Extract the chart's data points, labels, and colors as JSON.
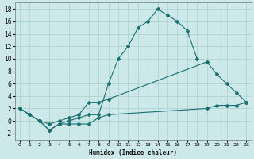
{
  "xlabel": "Humidex (Indice chaleur)",
  "background_color": "#cce8e8",
  "grid_color": "#afd4d4",
  "line_color": "#1a7070",
  "xlim": [
    -0.5,
    23.5
  ],
  "ylim": [
    -3,
    19
  ],
  "x_ticks": [
    0,
    1,
    2,
    3,
    4,
    5,
    6,
    7,
    8,
    9,
    10,
    11,
    12,
    13,
    14,
    15,
    16,
    17,
    18,
    19,
    20,
    21,
    22,
    23
  ],
  "y_ticks": [
    -2,
    0,
    2,
    4,
    6,
    8,
    10,
    12,
    14,
    16,
    18
  ],
  "series": [
    {
      "x": [
        0,
        1,
        2,
        3,
        4,
        5,
        6,
        7,
        8,
        9,
        10,
        11,
        12,
        13,
        14,
        15,
        16,
        17,
        18
      ],
      "y": [
        2.0,
        1.0,
        0.0,
        -1.5,
        -0.5,
        0.0,
        0.5,
        1.0,
        1.0,
        6.0,
        10.0,
        12.0,
        15.0,
        16.0,
        18.0,
        17.0,
        16.0,
        14.5,
        10.0
      ]
    },
    {
      "x": [
        0,
        1,
        2,
        3,
        4,
        5,
        6,
        7,
        8,
        9,
        19,
        20,
        21,
        22,
        23
      ],
      "y": [
        2.0,
        1.0,
        0.0,
        -0.5,
        0.0,
        0.5,
        1.0,
        3.0,
        3.0,
        3.5,
        9.5,
        7.5,
        6.0,
        4.5,
        3.0
      ]
    },
    {
      "x": [
        0,
        1,
        2,
        3,
        4,
        5,
        6,
        7,
        8,
        9,
        19,
        20,
        21,
        22,
        23
      ],
      "y": [
        2.0,
        1.0,
        0.0,
        -1.5,
        -0.5,
        -0.5,
        -0.5,
        -0.5,
        0.5,
        1.0,
        2.0,
        2.5,
        2.5,
        2.5,
        3.0
      ]
    }
  ]
}
